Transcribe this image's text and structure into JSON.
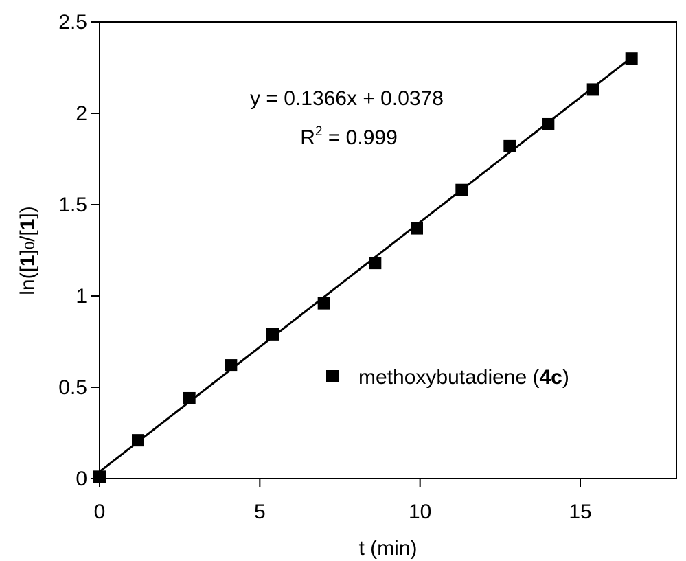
{
  "chart_data": {
    "type": "scatter",
    "xlabel": "t (min)",
    "ylabel": {
      "prefix": "ln([",
      "bold1": "1",
      "mid": "]",
      "sub": "0",
      "mid2": "/[",
      "bold2": "1",
      "suffix": "])"
    },
    "xlim": [
      0,
      18
    ],
    "ylim": [
      0,
      2.5
    ],
    "xticks": [
      0,
      5,
      10,
      15
    ],
    "xtick_labels": [
      "0",
      "5",
      "10",
      "15"
    ],
    "yticks": [
      0,
      0.5,
      1,
      1.5,
      2,
      2.5
    ],
    "ytick_labels": [
      "0",
      "0.5",
      "1",
      "1.5",
      "2",
      "2.5"
    ],
    "grid": false,
    "legend_position": "center-right",
    "series": [
      {
        "name": {
          "text": "methoxybutadiene (",
          "bold": "4c",
          "close": ")"
        },
        "marker": "square",
        "color": "#000000",
        "x": [
          0,
          1.2,
          2.8,
          4.1,
          5.4,
          7.0,
          8.6,
          9.9,
          11.3,
          12.8,
          14.0,
          15.4,
          16.6
        ],
        "y": [
          0.01,
          0.21,
          0.44,
          0.62,
          0.79,
          0.96,
          1.18,
          1.37,
          1.58,
          1.82,
          1.94,
          2.13,
          2.3
        ]
      }
    ],
    "fit_line": {
      "slope": 0.1366,
      "intercept": 0.0378,
      "x_range": [
        0,
        16.6
      ],
      "color": "#000000"
    },
    "annotations": {
      "equation": "y = 0.1366x + 0.0378",
      "r2_prefix": "R",
      "r2_sup": "2",
      "r2_value": " = 0.999"
    }
  }
}
